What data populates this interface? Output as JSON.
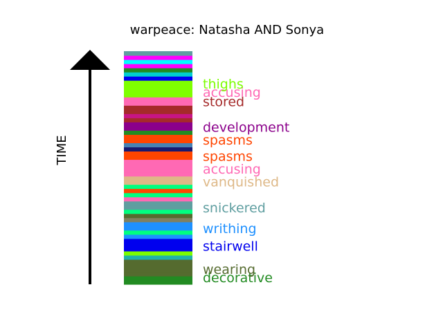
{
  "chart_data": {
    "type": "bar",
    "title": "warpeace: Natasha AND Sonya",
    "ylabel": "TIME",
    "grid": false,
    "legend": "none",
    "stripes": [
      {
        "color": "#228B22"
      },
      {
        "color": "#228B22"
      },
      {
        "color": "#556B2F"
      },
      {
        "color": "#556B2F"
      },
      {
        "color": "#556B2F"
      },
      {
        "color": "#556B2F"
      },
      {
        "color": "#20B2AA"
      },
      {
        "color": "#7CFC00"
      },
      {
        "color": "#0000EE"
      },
      {
        "color": "#0000EE"
      },
      {
        "color": "#0000EE"
      },
      {
        "color": "#1E90FF"
      },
      {
        "color": "#00FF7F"
      },
      {
        "color": "#1E90FF"
      },
      {
        "color": "#1E90FF"
      },
      {
        "color": "#808060"
      },
      {
        "color": "#556B2F"
      },
      {
        "color": "#00FF7F"
      },
      {
        "color": "#5F9EA0"
      },
      {
        "color": "#5F9EA0"
      },
      {
        "color": "#FF69B4"
      },
      {
        "color": "#00FF7F"
      },
      {
        "color": "#FF4500"
      },
      {
        "color": "#00FF7F"
      },
      {
        "color": "#DEB887"
      },
      {
        "color": "#DEB887"
      },
      {
        "color": "#FF69B4"
      },
      {
        "color": "#FF69B4"
      },
      {
        "color": "#FF69B4"
      },
      {
        "color": "#FF69B4"
      },
      {
        "color": "#FF4500"
      },
      {
        "color": "#FF4500"
      },
      {
        "color": "#191970"
      },
      {
        "color": "#4682B4"
      },
      {
        "color": "#FF4500"
      },
      {
        "color": "#FF4500"
      },
      {
        "color": "#228B22"
      },
      {
        "color": "#8B008B"
      },
      {
        "color": "#8B008B"
      },
      {
        "color": "#A52A2A"
      },
      {
        "color": "#C71585"
      },
      {
        "color": "#A52A2A"
      },
      {
        "color": "#A52A2A"
      },
      {
        "color": "#FF69B4"
      },
      {
        "color": "#FF69B4"
      },
      {
        "color": "#7FFF00"
      },
      {
        "color": "#7FFF00"
      },
      {
        "color": "#7FFF00"
      },
      {
        "color": "#7FFF00"
      },
      {
        "color": "#0000EE"
      },
      {
        "color": "#00CED1"
      },
      {
        "color": "#228B22"
      },
      {
        "color": "#FF00FF"
      },
      {
        "color": "#00FFFF"
      },
      {
        "color": "#FF00FF"
      },
      {
        "color": "#5F9EA0"
      }
    ],
    "annotations": [
      {
        "text": "decorative",
        "position": 0.97,
        "color": "#228B22"
      },
      {
        "text": "wearing",
        "position": 0.935,
        "color": "#556B2F"
      },
      {
        "text": "stairwell",
        "position": 0.835,
        "color": "#0000EE"
      },
      {
        "text": "writhing",
        "position": 0.76,
        "color": "#1E90FF"
      },
      {
        "text": "snickered",
        "position": 0.67,
        "color": "#5F9EA0"
      },
      {
        "text": "vanquished",
        "position": 0.56,
        "color": "#DEB887"
      },
      {
        "text": "accusing",
        "position": 0.505,
        "color": "#FF69B4"
      },
      {
        "text": "spasms",
        "position": 0.45,
        "color": "#FF4500"
      },
      {
        "text": "spasms",
        "position": 0.38,
        "color": "#FF4500"
      },
      {
        "text": "development",
        "position": 0.325,
        "color": "#8B008B"
      },
      {
        "text": "stored",
        "position": 0.215,
        "color": "#A52A2A"
      },
      {
        "text": "accusing",
        "position": 0.175,
        "color": "#FF69B4"
      },
      {
        "text": "thighs",
        "position": 0.14,
        "color": "#7CFC00"
      }
    ]
  }
}
